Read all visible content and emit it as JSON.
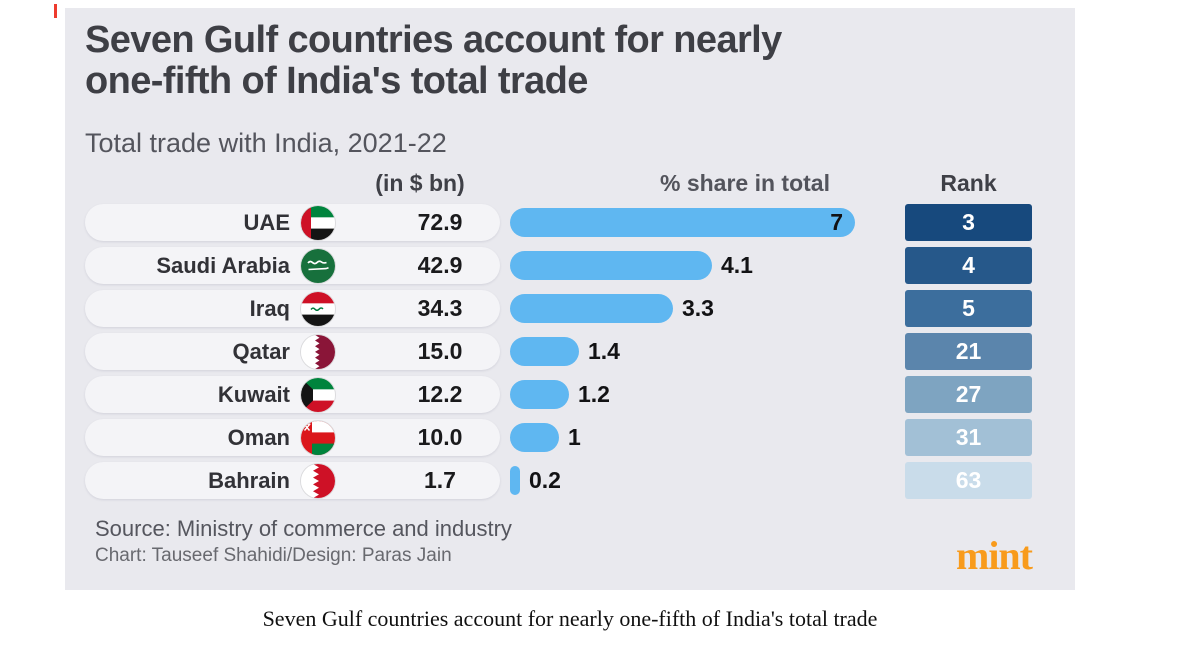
{
  "header": {
    "title_line1": "Seven Gulf countries account for nearly",
    "title_line2": "one-fifth of India's total trade",
    "subtitle": "Total trade with India, 2021-22"
  },
  "columns": {
    "value": "(in $ bn)",
    "share": "% share in total",
    "rank": "Rank"
  },
  "rows": [
    {
      "country": "UAE",
      "value": "72.9",
      "share": "7",
      "share_value": 7,
      "rank": "3",
      "rank_color": "#17497d"
    },
    {
      "country": "Saudi Arabia",
      "value": "42.9",
      "share": "4.1",
      "share_value": 4.1,
      "rank": "4",
      "rank_color": "#26588a"
    },
    {
      "country": "Iraq",
      "value": "34.3",
      "share": "3.3",
      "share_value": 3.3,
      "rank": "5",
      "rank_color": "#3c6e9d"
    },
    {
      "country": "Qatar",
      "value": "15.0",
      "share": "1.4",
      "share_value": 1.4,
      "rank": "21",
      "rank_color": "#5b85ac"
    },
    {
      "country": "Kuwait",
      "value": "12.2",
      "share": "1.2",
      "share_value": 1.2,
      "rank": "27",
      "rank_color": "#7ea4c1"
    },
    {
      "country": "Oman",
      "value": "10.0",
      "share": "1",
      "share_value": 1,
      "rank": "31",
      "rank_color": "#a2c0d6"
    },
    {
      "country": "Bahrain",
      "value": "1.7",
      "share": "0.2",
      "share_value": 0.2,
      "rank": "63",
      "rank_color": "#c9dcea"
    }
  ],
  "footer": {
    "source": "Source: Ministry of commerce and industry",
    "credit": "Chart: Tauseef Shahidi/Design: Paras Jain",
    "brand": "mint",
    "brand_color": "#f89b1c"
  },
  "caption": "Seven Gulf countries account for nearly one-fifth of India's total trade",
  "chart_data": {
    "type": "bar",
    "orientation": "horizontal",
    "title": "Seven Gulf countries account for nearly one-fifth of India's total trade",
    "subtitle": "Total trade with India, 2021-22",
    "categories": [
      "UAE",
      "Saudi Arabia",
      "Iraq",
      "Qatar",
      "Kuwait",
      "Oman",
      "Bahrain"
    ],
    "series": [
      {
        "name": "Total trade (in $ bn)",
        "values": [
          72.9,
          42.9,
          34.3,
          15.0,
          12.2,
          10.0,
          1.7
        ]
      },
      {
        "name": "% share in total",
        "values": [
          7,
          4.1,
          3.3,
          1.4,
          1.2,
          1,
          0.2
        ]
      },
      {
        "name": "Rank",
        "values": [
          3,
          4,
          5,
          21,
          27,
          31,
          63
        ]
      }
    ],
    "bar_color": "#5fb7f1",
    "legend": "off",
    "grid": "off",
    "source": "Ministry of commerce and industry"
  }
}
